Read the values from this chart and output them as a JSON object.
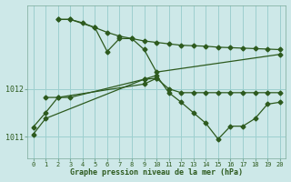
{
  "bg_color": "#cde8e8",
  "grid_color": "#9dcfcf",
  "line_color": "#2d5a1e",
  "xlabel": "Graphe pression niveau de la mer (hPa)",
  "ylim": [
    1010.55,
    1013.75
  ],
  "xlim": [
    -0.5,
    20.5
  ],
  "yticks": [
    1011,
    1012
  ],
  "xticks": [
    0,
    1,
    2,
    3,
    4,
    5,
    6,
    7,
    8,
    9,
    10,
    11,
    12,
    13,
    14,
    15,
    16,
    17,
    18,
    19,
    20
  ],
  "series1_x": [
    2,
    3,
    4,
    5,
    6,
    7,
    8,
    9,
    10,
    11,
    12,
    13,
    14,
    15,
    16,
    17,
    18,
    19,
    20
  ],
  "series1_y": [
    1013.45,
    1013.45,
    1013.38,
    1013.28,
    1013.18,
    1013.1,
    1013.05,
    1013.0,
    1012.97,
    1012.94,
    1012.91,
    1012.9,
    1012.89,
    1012.87,
    1012.86,
    1012.85,
    1012.84,
    1012.83,
    1012.82
  ],
  "series2_x": [
    2,
    3,
    5,
    6,
    7,
    8,
    9,
    10,
    20
  ],
  "series2_y": [
    1013.45,
    1013.45,
    1013.28,
    1012.78,
    1013.05,
    1013.05,
    1012.82,
    1012.35,
    1012.72
  ],
  "series3_x": [
    1,
    2,
    9,
    10
  ],
  "series3_y": [
    1011.82,
    1011.82,
    1012.1,
    1012.22
  ],
  "series4_x": [
    0,
    1,
    2,
    3,
    9,
    10,
    11,
    12,
    13,
    14,
    15,
    16,
    17,
    18,
    19,
    20
  ],
  "series4_y": [
    1011.2,
    1011.5,
    1011.82,
    1011.82,
    1012.2,
    1012.22,
    1012.0,
    1011.92,
    1011.92,
    1011.92,
    1011.92,
    1011.92,
    1011.92,
    1011.92,
    1011.92,
    1011.92
  ],
  "series5_x": [
    0,
    1,
    9,
    10,
    11,
    12,
    13,
    14,
    15,
    16,
    17,
    18,
    19,
    20
  ],
  "series5_y": [
    1011.05,
    1011.38,
    1012.2,
    1012.28,
    1011.92,
    1011.72,
    1011.5,
    1011.28,
    1010.95,
    1011.22,
    1011.22,
    1011.38,
    1011.68,
    1011.72
  ]
}
